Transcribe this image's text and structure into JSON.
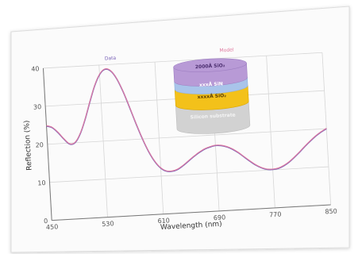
{
  "colors": {
    "sheet": "#fbfbfb",
    "sheet_border": "#dcdcdc",
    "grid": "#d6d6d6",
    "axis": "#777777",
    "curve_data": "#7a63b8",
    "curve_model": "#e07aa0",
    "layer_top": "#b89ad6",
    "layer_top_side": "#9e7fc2",
    "layer_blue": "#a9c4ea",
    "layer_blue_side": "#8fb0dd",
    "layer_yellow": "#f3c11a",
    "layer_yellow_side": "#dca700",
    "layer_substrate": "#d2d2d2",
    "layer_substrate_side": "#bdbdbd"
  },
  "legend": {
    "data_label": "Data",
    "model_label": "Model"
  },
  "stack": {
    "layers": [
      {
        "label": "2000Å SiO₂"
      },
      {
        "label": "xxxÅ SiN"
      },
      {
        "label": "xxxxÅ SiO₂"
      },
      {
        "label": "Silicon substrate"
      }
    ]
  },
  "chart_data": {
    "type": "line",
    "xlabel": "Wavelength (nm)",
    "ylabel": "Reflection (%)",
    "xlim": [
      450,
      850
    ],
    "ylim": [
      0,
      40
    ],
    "xticks": [
      450,
      530,
      610,
      690,
      770,
      850
    ],
    "yticks": [
      0,
      10,
      20,
      30,
      40
    ],
    "grid": true,
    "legend_position": "top",
    "series": [
      {
        "name": "Data",
        "x": [
          450,
          458,
          466,
          474,
          482,
          490,
          498,
          506,
          514,
          522,
          530,
          538,
          546,
          554,
          562,
          570,
          578,
          586,
          594,
          602,
          610,
          618,
          626,
          634,
          642,
          650,
          658,
          666,
          674,
          682,
          690,
          698,
          706,
          714,
          722,
          730,
          738,
          746,
          754,
          762,
          770,
          778,
          786,
          794,
          802,
          810,
          818,
          826,
          834,
          842,
          850
        ],
        "y": [
          24.8,
          24.3,
          22.9,
          21.1,
          19.7,
          20.1,
          22.4,
          26.1,
          30.5,
          34.6,
          37.5,
          38.8,
          38.3,
          36.2,
          32.8,
          28.6,
          24.2,
          20.1,
          16.6,
          13.9,
          12.1,
          11.2,
          11.1,
          11.5,
          12.4,
          13.5,
          14.6,
          15.6,
          16.4,
          16.9,
          17.2,
          17.1,
          16.7,
          16.0,
          15.0,
          13.8,
          12.6,
          11.5,
          10.7,
          10.2,
          10.1,
          10.3,
          10.9,
          11.8,
          13.0,
          14.3,
          15.7,
          17.0,
          18.2,
          19.2,
          20.0
        ]
      },
      {
        "name": "Model",
        "x": [
          450,
          458,
          466,
          474,
          482,
          490,
          498,
          506,
          514,
          522,
          530,
          538,
          546,
          554,
          562,
          570,
          578,
          586,
          594,
          602,
          610,
          618,
          626,
          634,
          642,
          650,
          658,
          666,
          674,
          682,
          690,
          698,
          706,
          714,
          722,
          730,
          738,
          746,
          754,
          762,
          770,
          778,
          786,
          794,
          802,
          810,
          818,
          826,
          834,
          842,
          850
        ],
        "y": [
          24.9,
          24.4,
          23.0,
          21.2,
          19.8,
          20.2,
          22.5,
          26.2,
          30.6,
          34.7,
          37.6,
          38.9,
          38.4,
          36.3,
          32.9,
          28.7,
          24.3,
          20.2,
          16.7,
          14.0,
          12.2,
          11.3,
          11.2,
          11.6,
          12.5,
          13.6,
          14.7,
          15.7,
          16.5,
          17.0,
          17.3,
          17.2,
          16.8,
          16.1,
          15.1,
          13.9,
          12.7,
          11.6,
          10.8,
          10.3,
          10.2,
          10.4,
          11.0,
          11.9,
          13.1,
          14.4,
          15.8,
          17.1,
          18.3,
          19.3,
          20.1
        ]
      }
    ]
  }
}
